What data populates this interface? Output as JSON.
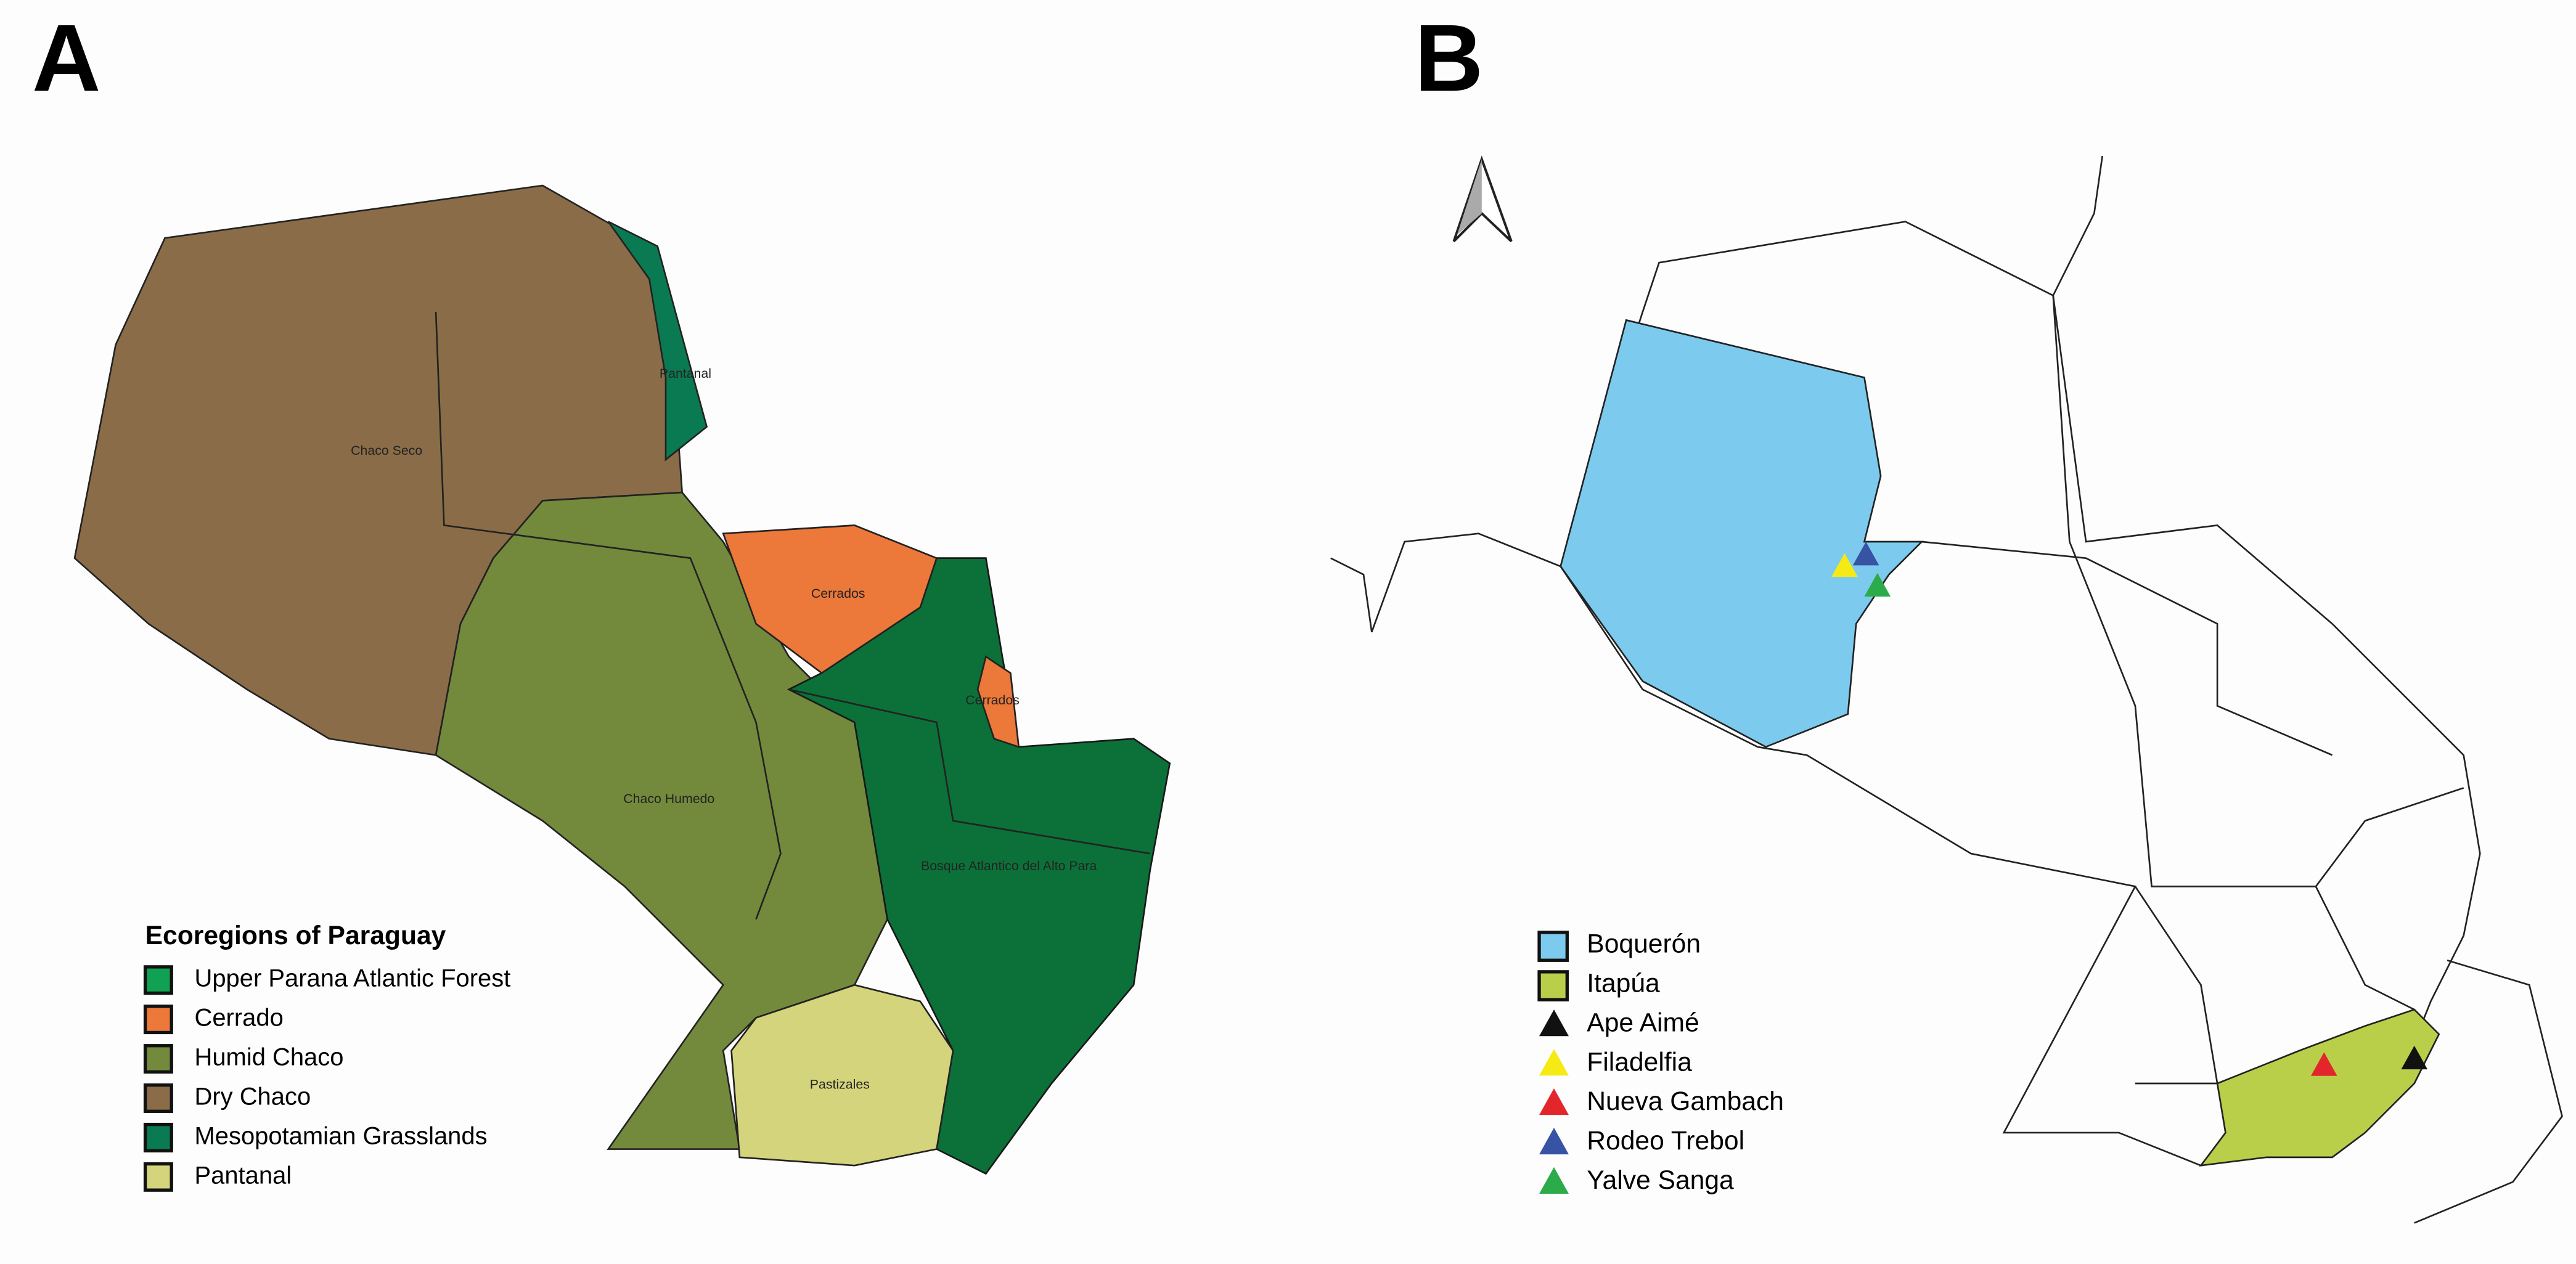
{
  "panel_a": {
    "label": "A",
    "region_labels": [
      "Pantanal",
      "Chaco Seco",
      "Cerrados",
      "Cerrados",
      "Chaco Humedo",
      "Bosque Atlantico del Alto Para",
      "Pastizales"
    ],
    "legend": {
      "title": "Ecoregions of Paraguay",
      "items": [
        {
          "name": "Upper Parana Atlantic Forest",
          "color": "#10a152"
        },
        {
          "name": "Cerrado",
          "color": "#ec7839"
        },
        {
          "name": "Humid Chaco",
          "color": "#738a3c"
        },
        {
          "name": "Dry Chaco",
          "color": "#8a6d48"
        },
        {
          "name": "Mesopotamian Grasslands",
          "color": "#0a7a52"
        },
        {
          "name": "Pantanal",
          "color": "#d4d47c"
        }
      ]
    }
  },
  "panel_b": {
    "label": "B",
    "legend": {
      "items": [
        {
          "name": "Boquerón",
          "color": "#7ccbef",
          "marker": "square"
        },
        {
          "name": "Itapúa",
          "color": "#b9cf4a",
          "marker": "square"
        },
        {
          "name": "Ape Aimé",
          "color": "#111111",
          "marker": "triangle"
        },
        {
          "name": "Filadelfia",
          "color": "#f5ea14",
          "marker": "triangle"
        },
        {
          "name": "Nueva Gambach",
          "color": "#e3262b",
          "marker": "triangle"
        },
        {
          "name": "Rodeo Trebol",
          "color": "#3953a4",
          "marker": "triangle"
        },
        {
          "name": "Yalve Sanga",
          "color": "#2bab4a",
          "marker": "triangle"
        }
      ]
    }
  }
}
